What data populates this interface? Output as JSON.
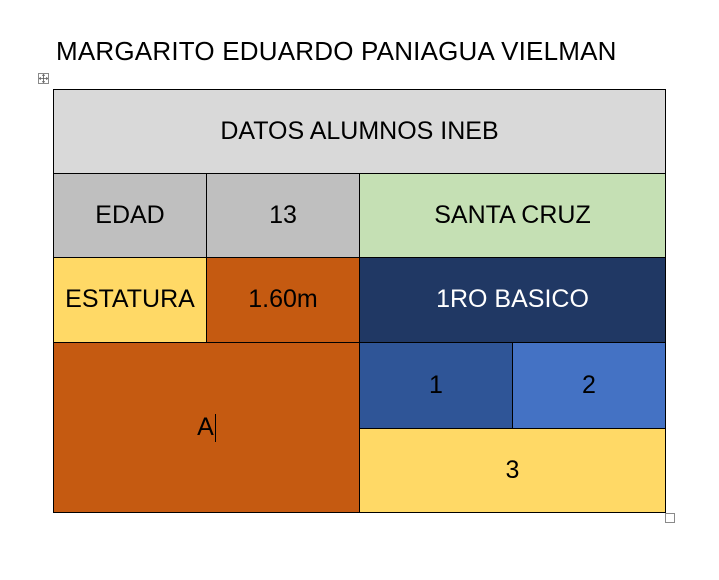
{
  "document": {
    "heading": "MARGARITO EDUARDO PANIAGUA VIELMAN"
  },
  "table": {
    "title": "DATOS ALUMNOS INEB",
    "row2": {
      "label": "EDAD",
      "value": "13",
      "city": "SANTA CRUZ"
    },
    "row3": {
      "label": "ESTATURA",
      "value": "1.60m",
      "grade": "1RO BASICO"
    },
    "merged_cell": "A",
    "cell_one": "1",
    "cell_two": "2",
    "cell_three": "3"
  },
  "icons": {
    "move_handle": "four-arrows-move-icon",
    "resize_handle": "square-resize-icon"
  },
  "colors": {
    "title_bg": "#d9d9d9",
    "gray_cell": "#bfbfbf",
    "green_cell": "#c5e0b4",
    "yellow_cell": "#ffd966",
    "orange_cell": "#c55a11",
    "dark_blue_cell": "#203864",
    "blue_cell": "#2f5597",
    "light_blue_cell": "#4472c4"
  }
}
